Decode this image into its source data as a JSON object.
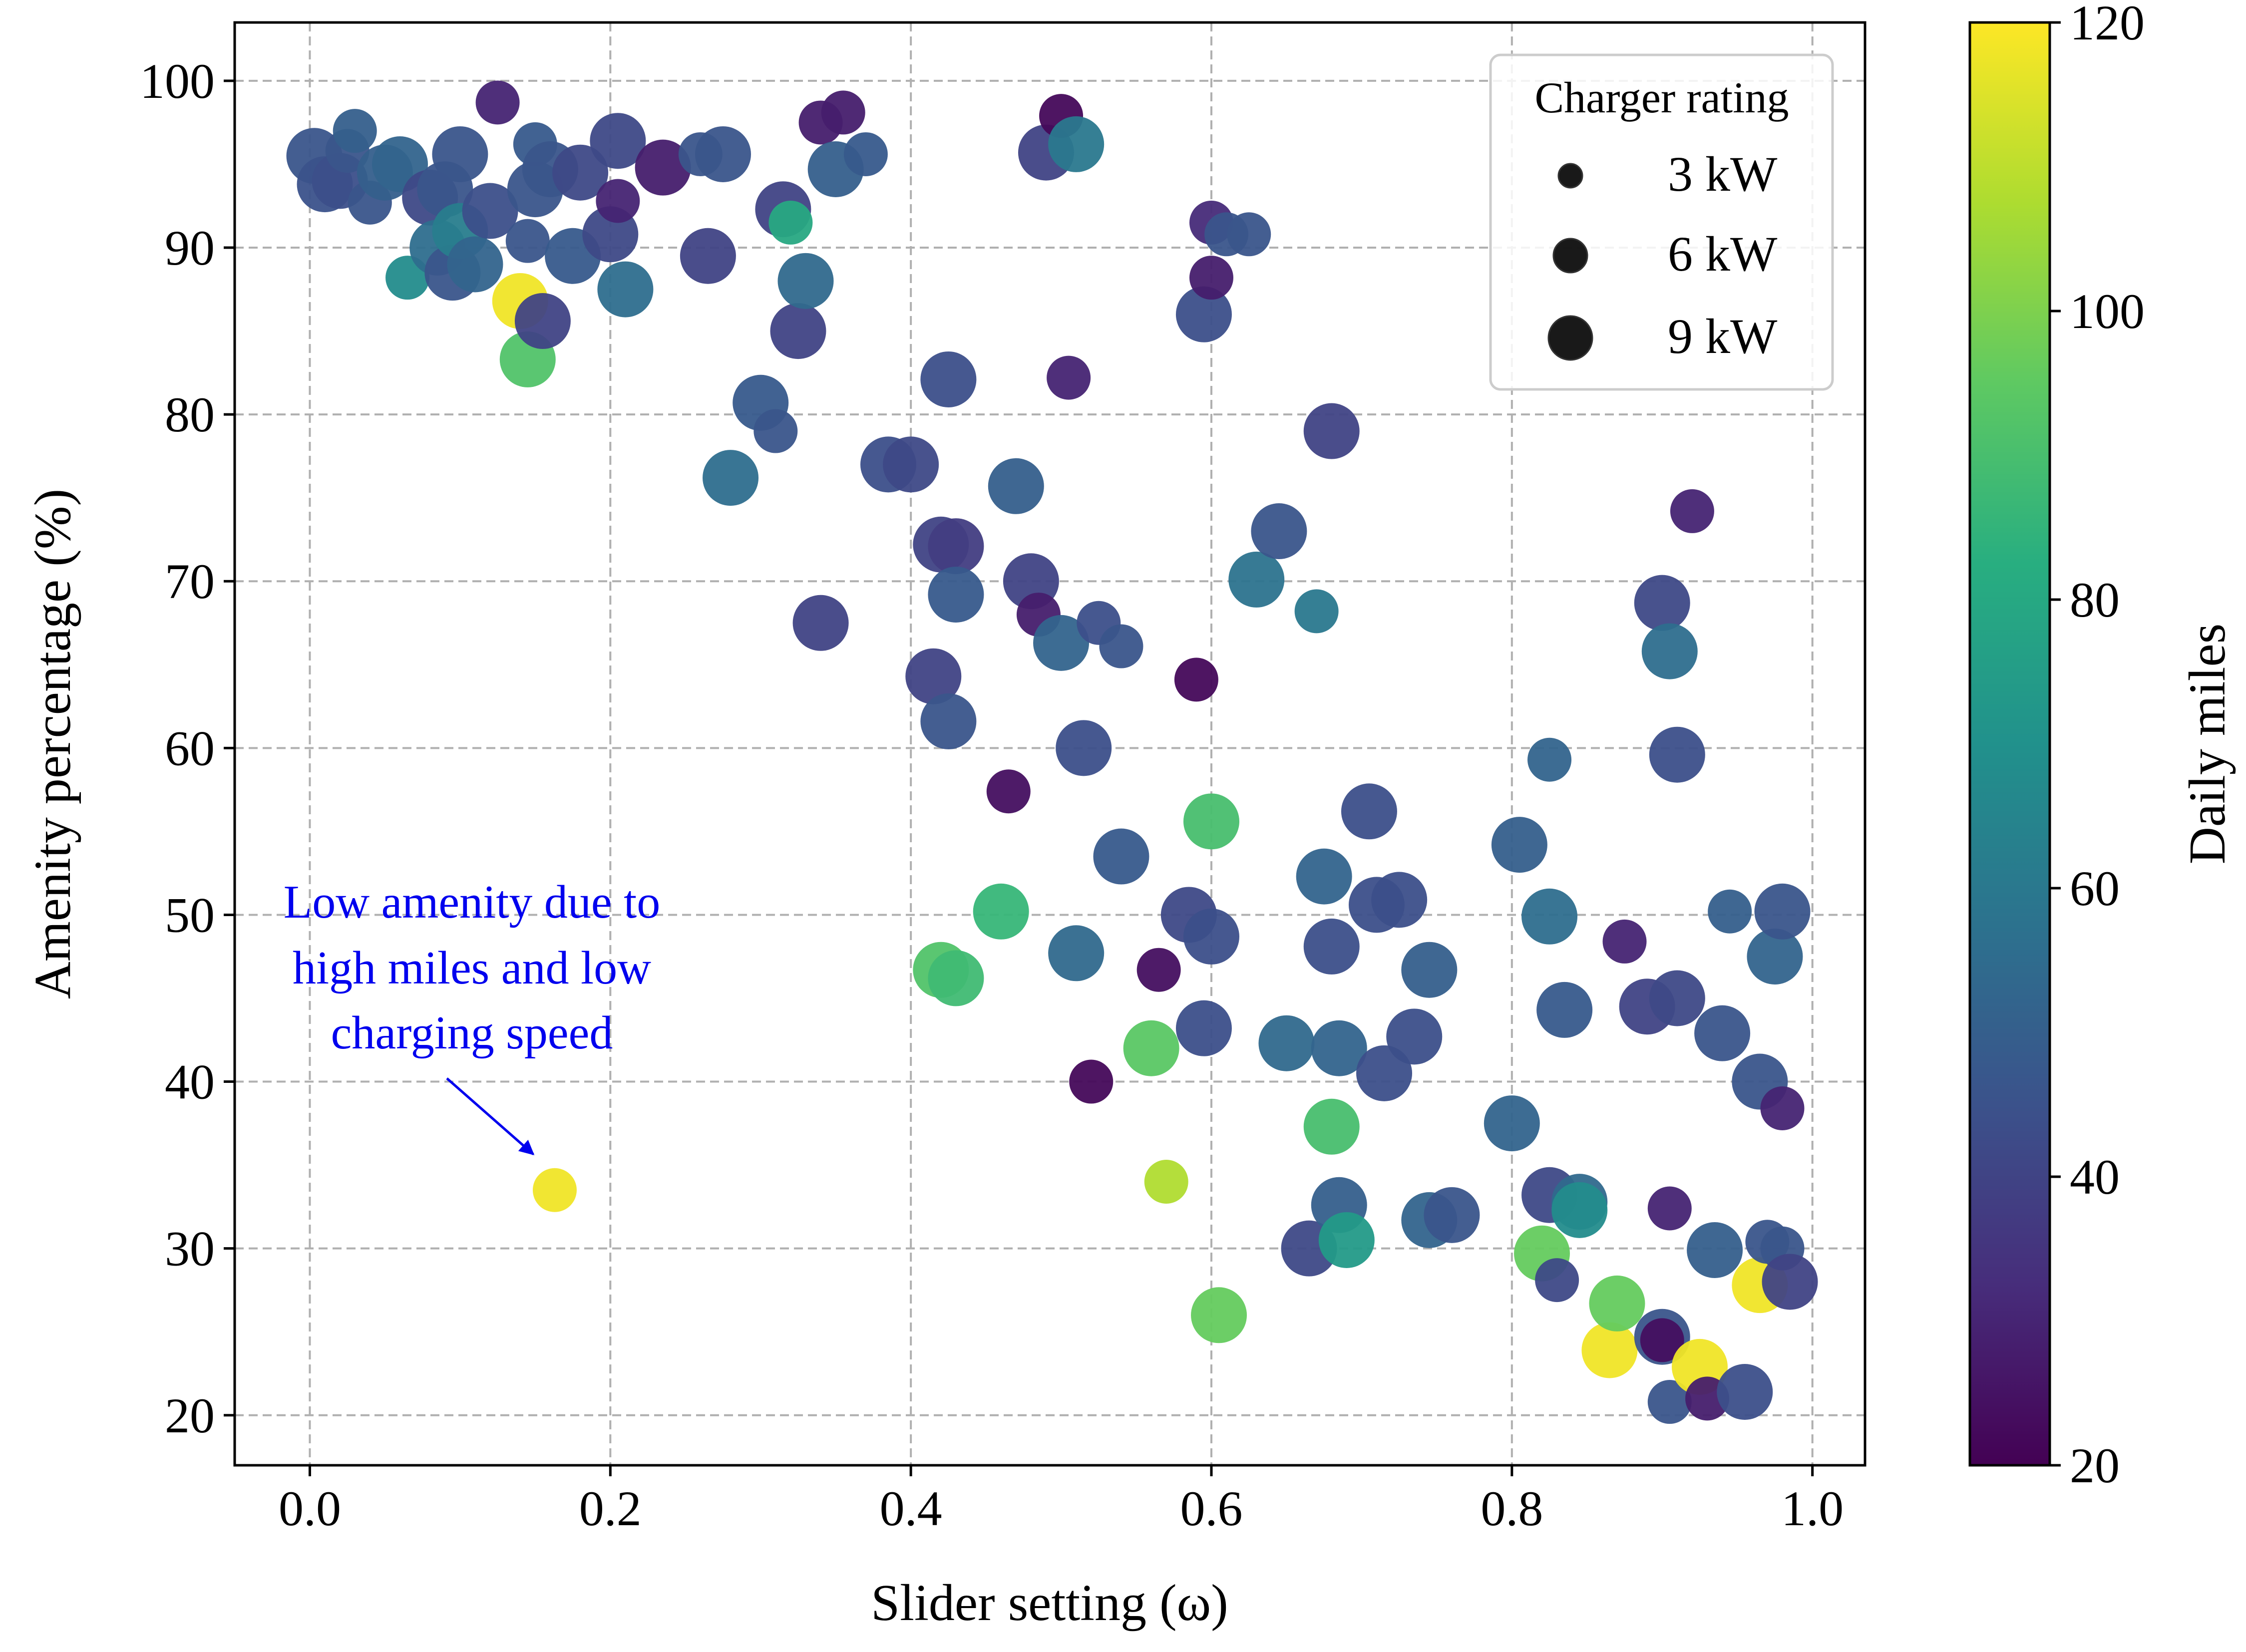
{
  "chart_data": {
    "type": "scatter",
    "title": "",
    "xlabel": "Slider setting (ω)",
    "ylabel": "Amenity percentage (%)",
    "xlim": [
      -0.05,
      1.035
    ],
    "ylim": [
      17,
      103.5
    ],
    "xticks": [
      0.0,
      0.2,
      0.4,
      0.6,
      0.8,
      1.0
    ],
    "xtick_labels": [
      "0.0",
      "0.2",
      "0.4",
      "0.6",
      "0.8",
      "1.0"
    ],
    "yticks": [
      20,
      30,
      40,
      50,
      60,
      70,
      80,
      90,
      100
    ],
    "ytick_labels": [
      "20",
      "30",
      "40",
      "50",
      "60",
      "70",
      "80",
      "90",
      "100"
    ],
    "grid": true,
    "colorbar": {
      "label": "Daily miles",
      "min": 20,
      "max": 120,
      "ticks": [
        20,
        40,
        60,
        80,
        100,
        120
      ],
      "tick_labels": [
        "20",
        "40",
        "60",
        "80",
        "100",
        "120"
      ],
      "colormap": "viridis"
    },
    "legend": {
      "title": "Charger rating",
      "placement": "top-right",
      "entries": [
        {
          "label": "3 kW",
          "kw": 3
        },
        {
          "label": "6 kW",
          "kw": 6
        },
        {
          "label": "9 kW",
          "kw": 9
        }
      ]
    },
    "annotation": {
      "lines": [
        "Low amenity due to",
        "high miles and low",
        "charging speed"
      ],
      "target": {
        "x": 0.163,
        "y": 33.5
      },
      "text_anchor": {
        "x": 0.11,
        "y": 42
      },
      "color": "#0000ee"
    },
    "points": [
      [
        0.003,
        95.5,
        9,
        46
      ],
      [
        0.01,
        93.8,
        9,
        45
      ],
      [
        0.02,
        94,
        9,
        44
      ],
      [
        0.025,
        95.8,
        6,
        46
      ],
      [
        0.03,
        97,
        6,
        50
      ],
      [
        0.04,
        92.7,
        6,
        46
      ],
      [
        0.05,
        94.5,
        9,
        50
      ],
      [
        0.06,
        95,
        9,
        52
      ],
      [
        0.065,
        88.2,
        6,
        68
      ],
      [
        0.08,
        93,
        9,
        42
      ],
      [
        0.085,
        90,
        9,
        56
      ],
      [
        0.09,
        93.5,
        9,
        46
      ],
      [
        0.095,
        88.5,
        9,
        46
      ],
      [
        0.1,
        91,
        9,
        62
      ],
      [
        0.1,
        95.6,
        9,
        46
      ],
      [
        0.11,
        89,
        9,
        52
      ],
      [
        0.12,
        92.2,
        9,
        44
      ],
      [
        0.125,
        98.7,
        6,
        30
      ],
      [
        0.14,
        86.8,
        9,
        118
      ],
      [
        0.145,
        83.3,
        9,
        92
      ],
      [
        0.145,
        90.4,
        6,
        46
      ],
      [
        0.15,
        93.5,
        9,
        46
      ],
      [
        0.15,
        96.2,
        6,
        48
      ],
      [
        0.155,
        85.6,
        9,
        40
      ],
      [
        0.16,
        94.7,
        9,
        46
      ],
      [
        0.175,
        89.5,
        9,
        48
      ],
      [
        0.18,
        94.5,
        9,
        42
      ],
      [
        0.2,
        90.8,
        9,
        42
      ],
      [
        0.205,
        96.4,
        9,
        42
      ],
      [
        0.205,
        92.8,
        6,
        30
      ],
      [
        0.21,
        87.5,
        9,
        56
      ],
      [
        0.235,
        94.8,
        9,
        28
      ],
      [
        0.26,
        95.6,
        6,
        46
      ],
      [
        0.265,
        89.5,
        9,
        40
      ],
      [
        0.275,
        95.6,
        9,
        46
      ],
      [
        0.28,
        76.2,
        9,
        56
      ],
      [
        0.3,
        80.7,
        9,
        48
      ],
      [
        0.31,
        79,
        6,
        46
      ],
      [
        0.315,
        92.3,
        9,
        40
      ],
      [
        0.32,
        91.5,
        6,
        80
      ],
      [
        0.325,
        85,
        9,
        40
      ],
      [
        0.33,
        88,
        9,
        54
      ],
      [
        0.34,
        97.5,
        6,
        28
      ],
      [
        0.34,
        67.5,
        9,
        40
      ],
      [
        0.35,
        94.7,
        9,
        50
      ],
      [
        0.355,
        98.1,
        6,
        28
      ],
      [
        0.37,
        95.6,
        6,
        48
      ],
      [
        0.385,
        77,
        9,
        44
      ],
      [
        0.4,
        77,
        9,
        42
      ],
      [
        0.415,
        64.3,
        9,
        40
      ],
      [
        0.42,
        72.2,
        9,
        40
      ],
      [
        0.42,
        46.7,
        9,
        92
      ],
      [
        0.425,
        61.6,
        9,
        46
      ],
      [
        0.425,
        82.1,
        9,
        44
      ],
      [
        0.43,
        72.1,
        9,
        38
      ],
      [
        0.43,
        46.2,
        9,
        88
      ],
      [
        0.43,
        69.2,
        9,
        48
      ],
      [
        0.46,
        50.2,
        9,
        86
      ],
      [
        0.465,
        57.4,
        6,
        24
      ],
      [
        0.47,
        75.7,
        9,
        50
      ],
      [
        0.48,
        70,
        9,
        40
      ],
      [
        0.485,
        68,
        6,
        28
      ],
      [
        0.49,
        95.7,
        9,
        40
      ],
      [
        0.5,
        97.9,
        6,
        22
      ],
      [
        0.5,
        66.3,
        9,
        52
      ],
      [
        0.505,
        82.2,
        6,
        30
      ],
      [
        0.51,
        96.2,
        9,
        60
      ],
      [
        0.51,
        47.7,
        9,
        54
      ],
      [
        0.515,
        60,
        9,
        44
      ],
      [
        0.52,
        40,
        6,
        22
      ],
      [
        0.525,
        67.5,
        6,
        44
      ],
      [
        0.54,
        66.1,
        6,
        46
      ],
      [
        0.54,
        53.5,
        9,
        48
      ],
      [
        0.56,
        42,
        9,
        94
      ],
      [
        0.565,
        46.7,
        6,
        24
      ],
      [
        0.57,
        34,
        6,
        108
      ],
      [
        0.585,
        50,
        9,
        42
      ],
      [
        0.59,
        64.1,
        6,
        22
      ],
      [
        0.595,
        43.2,
        9,
        44
      ],
      [
        0.595,
        86,
        9,
        44
      ],
      [
        0.6,
        55.6,
        9,
        90
      ],
      [
        0.6,
        91.5,
        6,
        32
      ],
      [
        0.6,
        48.7,
        9,
        44
      ],
      [
        0.6,
        88.2,
        6,
        28
      ],
      [
        0.605,
        26,
        9,
        96
      ],
      [
        0.61,
        90.8,
        6,
        46
      ],
      [
        0.625,
        90.8,
        6,
        46
      ],
      [
        0.63,
        70.1,
        9,
        58
      ],
      [
        0.645,
        73,
        9,
        46
      ],
      [
        0.65,
        42.3,
        9,
        54
      ],
      [
        0.665,
        30,
        9,
        42
      ],
      [
        0.67,
        68.2,
        6,
        60
      ],
      [
        0.675,
        52.3,
        9,
        52
      ],
      [
        0.68,
        37.3,
        9,
        90
      ],
      [
        0.68,
        79,
        9,
        40
      ],
      [
        0.68,
        48.1,
        9,
        44
      ],
      [
        0.685,
        32.6,
        9,
        50
      ],
      [
        0.685,
        42,
        9,
        52
      ],
      [
        0.69,
        30.5,
        9,
        74
      ],
      [
        0.705,
        56.2,
        9,
        44
      ],
      [
        0.71,
        50.6,
        9,
        44
      ],
      [
        0.715,
        40.5,
        9,
        44
      ],
      [
        0.725,
        50.9,
        9,
        44
      ],
      [
        0.735,
        42.7,
        9,
        44
      ],
      [
        0.745,
        46.7,
        9,
        50
      ],
      [
        0.745,
        31.7,
        9,
        52
      ],
      [
        0.76,
        32,
        9,
        46
      ],
      [
        0.8,
        37.5,
        9,
        52
      ],
      [
        0.805,
        54.2,
        9,
        50
      ],
      [
        0.82,
        29.7,
        9,
        96
      ],
      [
        0.825,
        33.2,
        9,
        42
      ],
      [
        0.825,
        59.3,
        6,
        52
      ],
      [
        0.825,
        49.9,
        9,
        56
      ],
      [
        0.83,
        28.1,
        6,
        42
      ],
      [
        0.835,
        44.3,
        9,
        48
      ],
      [
        0.845,
        32.8,
        9,
        54
      ],
      [
        0.845,
        32.3,
        9,
        68
      ],
      [
        0.865,
        23.9,
        9,
        118
      ],
      [
        0.87,
        26.7,
        9,
        96
      ],
      [
        0.875,
        48.4,
        6,
        30
      ],
      [
        0.89,
        44.5,
        9,
        40
      ],
      [
        0.9,
        68.7,
        9,
        42
      ],
      [
        0.9,
        24.7,
        9,
        46
      ],
      [
        0.9,
        24.5,
        6,
        24
      ],
      [
        0.905,
        65.8,
        9,
        56
      ],
      [
        0.905,
        32.4,
        6,
        30
      ],
      [
        0.905,
        20.8,
        6,
        46
      ],
      [
        0.91,
        45,
        9,
        42
      ],
      [
        0.91,
        59.6,
        9,
        44
      ],
      [
        0.92,
        74.2,
        6,
        30
      ],
      [
        0.925,
        22.9,
        9,
        118
      ],
      [
        0.93,
        21,
        6,
        28
      ],
      [
        0.935,
        29.9,
        9,
        50
      ],
      [
        0.94,
        42.9,
        9,
        46
      ],
      [
        0.945,
        50.2,
        6,
        50
      ],
      [
        0.955,
        21.4,
        9,
        44
      ],
      [
        0.965,
        40,
        9,
        46
      ],
      [
        0.965,
        27.8,
        9,
        118
      ],
      [
        0.97,
        30.4,
        6,
        46
      ],
      [
        0.975,
        47.5,
        9,
        52
      ],
      [
        0.98,
        50.2,
        9,
        46
      ],
      [
        0.98,
        38.4,
        6,
        30
      ],
      [
        0.98,
        30,
        6,
        46
      ],
      [
        0.985,
        28,
        9,
        40
      ],
      [
        0.163,
        33.5,
        6,
        118
      ]
    ]
  }
}
